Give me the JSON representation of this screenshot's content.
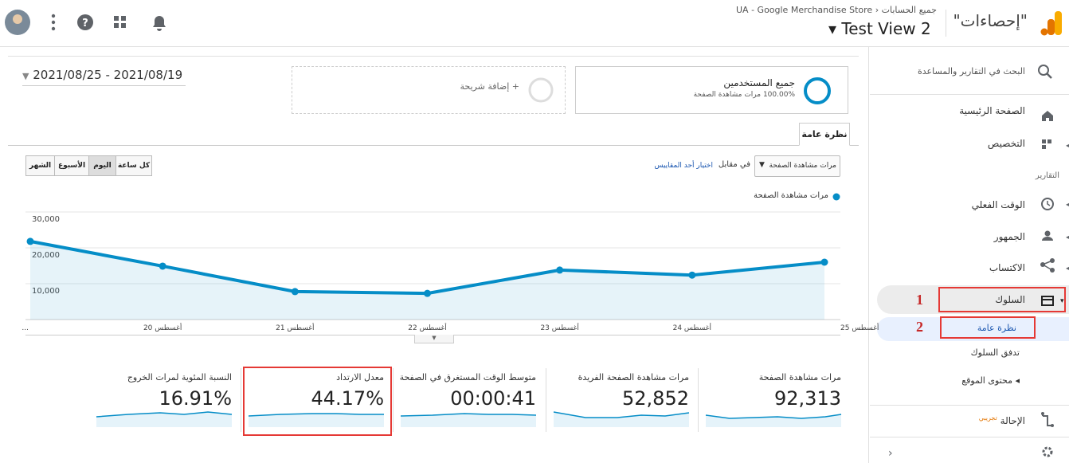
{
  "header": {
    "app_title": "\"إحصاءات\"",
    "breadcrumb": "جميع الحسابات",
    "account": "UA - Google Merchandise Store",
    "view": "Test View 2"
  },
  "sidebar": {
    "search": "البحث في التقارير والمساعدة",
    "home": "الصفحة الرئيسية",
    "customization": "التخصيص",
    "section": "التقارير",
    "realtime": "الوقت الفعلي",
    "audience": "الجمهور",
    "acquisition": "الاكتساب",
    "behavior": "السلوك",
    "behavior_items": [
      "نظرة عامة",
      "تدفق السلوك",
      "محتوى الموقع"
    ],
    "attribution": "الإحالة",
    "attribution_badge": "تجريبي"
  },
  "annotations": [
    "1",
    "2"
  ],
  "date_range": "2021/08/25 - 2021/08/19",
  "segments": {
    "active_title": "جميع المستخدمين",
    "active_subtitle": "100.00% مرات مشاهدة الصفحة",
    "add": "+ إضافة شريحة"
  },
  "tab": "نظرة عامة",
  "controls": {
    "metric": "مرات مشاهدة الصفحة",
    "versus": "في مقابل",
    "choose": "اختيار أحد المقاييس",
    "periods": [
      "كل ساعة",
      "اليوم",
      "الأسبوع",
      "الشهر"
    ]
  },
  "chart_data": {
    "type": "line",
    "categories": [
      "...",
      "أغسطس 20",
      "أغسطس 21",
      "أغسطس 22",
      "أغسطس 23",
      "أغسطس 24",
      "أغسطس 25"
    ],
    "series": [
      {
        "name": "مرات مشاهدة الصفحة",
        "color": "#058dc7",
        "values": [
          21800,
          14900,
          7800,
          7300,
          13800,
          12400,
          16000
        ]
      }
    ],
    "ylim": [
      0,
      30000
    ],
    "yticks": [
      {
        "value": 10000,
        "label": "10,000"
      },
      {
        "value": 20000,
        "label": "20,000"
      },
      {
        "value": 30000,
        "label": "30,000"
      }
    ],
    "grid": true
  },
  "metrics": [
    {
      "label": "مرات مشاهدة الصفحة",
      "value": "92,313"
    },
    {
      "label": "مرات مشاهدة الصفحة الفريدة",
      "value": "52,852"
    },
    {
      "label": "متوسط الوقت المستغرق في الصفحة",
      "value": "00:00:41"
    },
    {
      "label": "معدل الارتداد",
      "value": "44.17%"
    },
    {
      "label": "النسبة المئوية لمرات الخروج",
      "value": "16.91%"
    }
  ]
}
